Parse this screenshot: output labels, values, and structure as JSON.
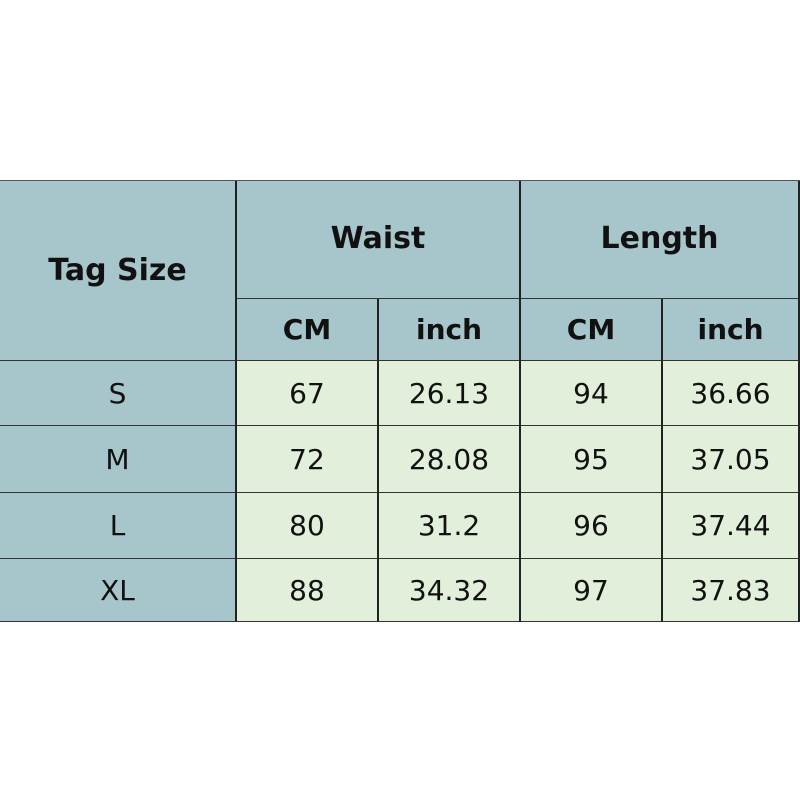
{
  "table": {
    "header": {
      "tag_size": "Tag Size",
      "groups": [
        "Waist",
        "Length"
      ],
      "units": [
        "CM",
        "inch",
        "CM",
        "inch"
      ]
    },
    "rows": [
      [
        "S",
        67,
        26.13,
        94,
        36.66
      ],
      [
        "M",
        72,
        28.08,
        95,
        37.05
      ],
      [
        "L",
        80,
        31.2,
        96,
        37.44
      ],
      [
        "XL",
        88,
        34.32,
        97,
        37.83
      ]
    ]
  }
}
